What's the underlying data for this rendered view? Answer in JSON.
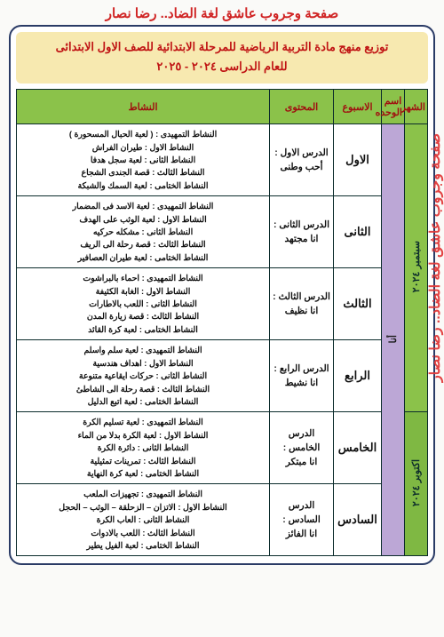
{
  "credit": "صفحة وجروب عاشق لغة الضاد.. رضا نصار",
  "watermark": "صفحة وجروب عاشق لغة الضاد.. رضا نصار",
  "title": {
    "line1": "توزيع منهج مادة التربية الرياضية للمرحلة الابتدائية للصف الاول الابتدائى",
    "line2": "للعام الدراسى ٢٠٢٤ - ٢٠٢٥"
  },
  "headers": {
    "month": "الشهر",
    "unit": "اسم الوحده",
    "week": "الاسبوع",
    "content": "المحتوى",
    "activity": "النشاط"
  },
  "months": {
    "m1": "سبتمبر ٢٠٢٤",
    "m2": "اكتوبر ٢٠٢٤"
  },
  "units": {
    "u1": "أنا"
  },
  "rows": [
    {
      "week": "الاول",
      "content_l1": "الدرس الاول :",
      "content_l2": "أحب وطنى",
      "acts": [
        "النشاط التمهيدى : ( لعبة الحبال المسحورة )",
        "النشاط الاول : طيران الفراش",
        "النشاط الثانى : لعبة سجل هدفا",
        "النشاط الثالث : قصة الجندى الشجاع",
        "النشاط الختامى : لعبة السمك والشبكة"
      ]
    },
    {
      "week": "الثانى",
      "content_l1": "الدرس الثانى :",
      "content_l2": "انا مجتهد",
      "acts": [
        "النشاط التمهيدى : لعبة الاسد فى المضمار",
        "النشاط الاول : لعبة الوثب على الهدف",
        "النشاط الثانى : مشكله حركيه",
        "النشاط الثالث : قصة رحلة الى الريف",
        "النشاط الختامى : لعبة طيران العصافير"
      ]
    },
    {
      "week": "الثالث",
      "content_l1": "الدرس الثالث :",
      "content_l2": "انا نظيف",
      "acts": [
        "النشاط التمهيدى : احماء بالبراشوت",
        "النشاط الاول : الغابة الكثيفة",
        "النشاط الثانى : اللعب بالاطارات",
        "النشاط الثالث : قصة زيارة المدن",
        "النشاط الختامى : لعبة كرة القائد"
      ]
    },
    {
      "week": "الرابع",
      "content_l1": "الدرس الرابع :",
      "content_l2": "انا نشيط",
      "acts": [
        "النشاط التمهيدى : لعبة سلم واسلم",
        "النشاط الاول : اهداف هندسية",
        "النشاط الثانى : حركات ايقاعية متنوعة",
        "النشاط الثالث : قصة رحلة الى الشاطئ",
        "النشاط الختامى : لعبة اتبع الدليل"
      ]
    },
    {
      "week": "الخامس",
      "content_l1": "الدرس الخامس :",
      "content_l2": "انا مبتكر",
      "acts": [
        "النشاط التمهيدى : لعبة تسليم الكرة",
        "النشاط الاول : لعبة الكرة بدلا من الماء",
        "النشاط الثانى : دائرة الكرة",
        "النشاط الثالث : تمرينات تمثيلية",
        "النشاط الختامى : لعبة كرة النهاية"
      ]
    },
    {
      "week": "السادس",
      "content_l1": "الدرس السادس :",
      "content_l2": "انا الفائز",
      "acts": [
        "النشاط التمهيدى : تجهيزات الملعب",
        "النشاط الاول : الاتزان – الزحلقة – الوثب – الحجل",
        "النشاط الثانى : العاب الكرة",
        "النشاط الثالث : اللعب بالادوات",
        "النشاط الختامى : لعبة الفيل يطير"
      ]
    }
  ],
  "colors": {
    "header_bg": "#8bc24a",
    "unit_bg": "#bca7d6",
    "title_bg": "#f7e9b0",
    "accent_red": "#c01414",
    "border": "#0b2b2b"
  }
}
